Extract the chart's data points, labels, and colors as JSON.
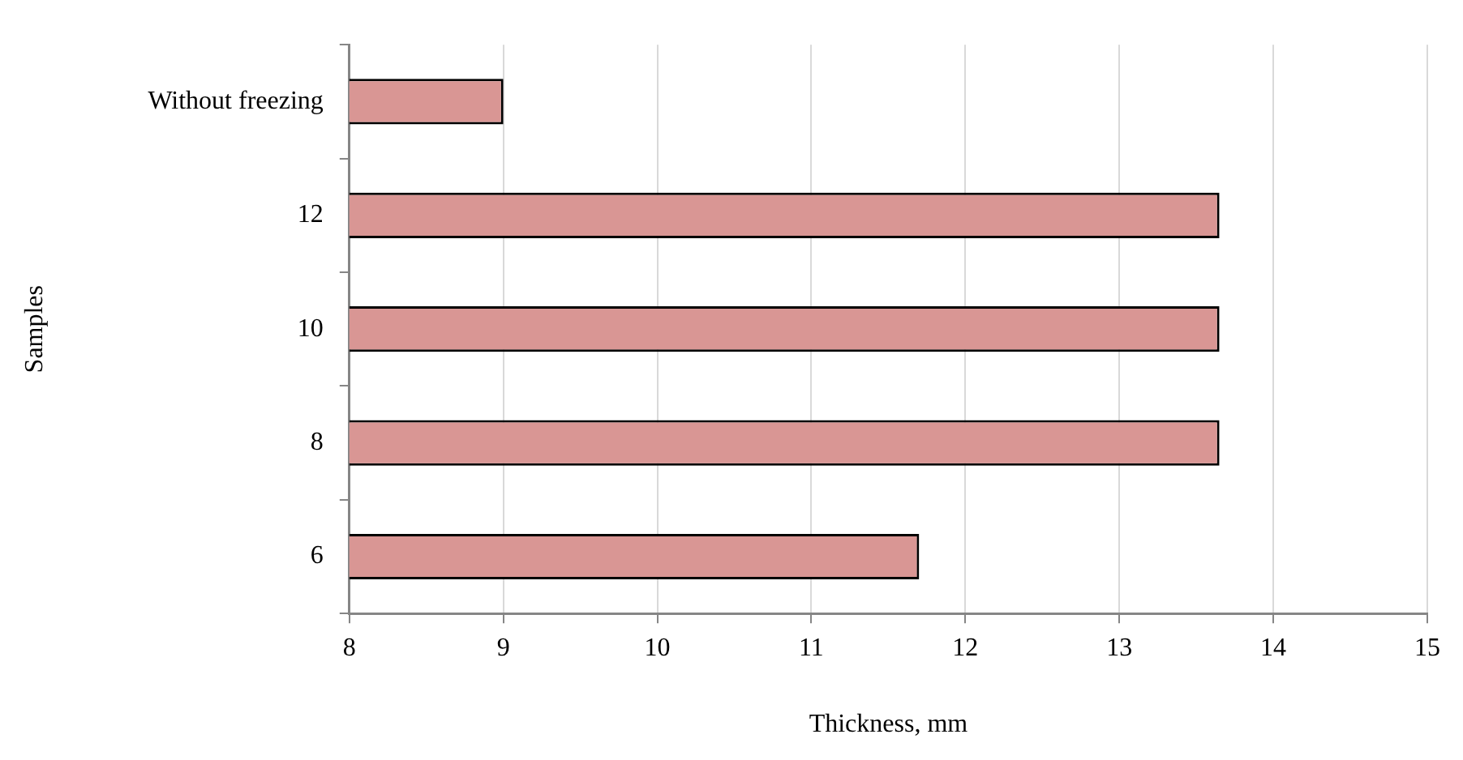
{
  "chart_data": {
    "type": "bar",
    "orientation": "horizontal",
    "xlabel": "Thickness, mm",
    "ylabel": "Samples",
    "categories": [
      "Without freezing",
      "12",
      "10",
      "8",
      "6"
    ],
    "values": [
      9,
      13.65,
      13.65,
      13.65,
      11.7
    ],
    "color": "#d99694",
    "xlim": [
      8,
      15
    ],
    "xticks": [
      8,
      9,
      10,
      11,
      12,
      13,
      14,
      15
    ],
    "grid": "x"
  }
}
